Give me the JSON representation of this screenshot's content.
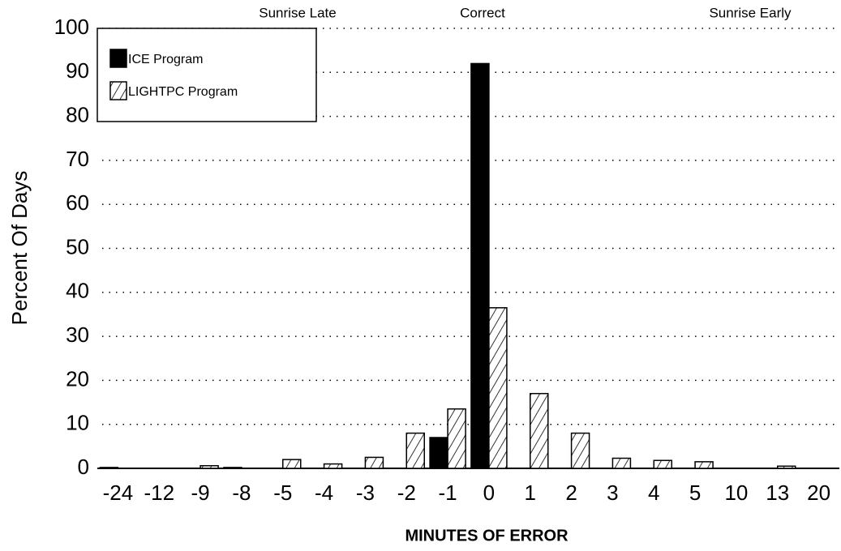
{
  "chart_data": {
    "type": "bar",
    "annotations": [
      "Sunrise Late",
      "Correct",
      "Sunrise Early"
    ],
    "xlabel": "MINUTES OF ERROR",
    "ylabel": "Percent Of Days",
    "categories": [
      "-24",
      "-12",
      "-9",
      "-8",
      "-5",
      "-4",
      "-3",
      "-2",
      "-1",
      "0",
      "1",
      "2",
      "3",
      "4",
      "5",
      "10",
      "13",
      "20"
    ],
    "series": [
      {
        "name": "ICE Program",
        "color": "#000000",
        "hatch": false,
        "values": [
          0.2,
          0,
          0,
          0.2,
          0,
          0,
          0,
          0,
          7,
          92,
          0,
          0,
          0,
          0,
          0,
          0,
          0,
          0
        ]
      },
      {
        "name": "LIGHTPC Program",
        "color": "#ffffff",
        "hatch": true,
        "values": [
          0,
          0,
          0.6,
          0,
          2,
          1,
          2.5,
          8,
          13.5,
          36.5,
          17,
          8,
          2.3,
          1.8,
          1.5,
          0,
          0.5,
          0
        ]
      }
    ],
    "ylim": [
      0,
      100
    ],
    "yticks": [
      0,
      10,
      20,
      30,
      40,
      50,
      60,
      70,
      80,
      90,
      100
    ],
    "grid": true
  }
}
